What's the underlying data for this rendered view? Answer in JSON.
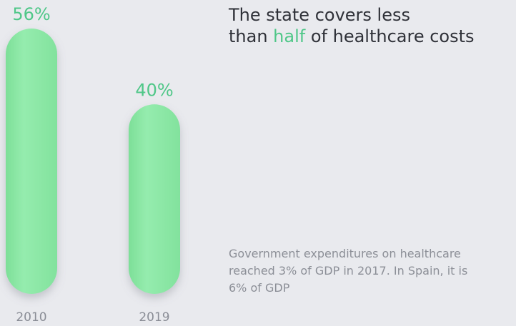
{
  "title": {
    "line1": "The state covers less",
    "line2_pre": "than ",
    "line2_highlight": "half",
    "line2_post": " of healthcare costs"
  },
  "note": "Government expenditures on healthcare reached 3% of GDP in 2017. In Spain, it is 6% of GDP",
  "colors": {
    "bar": "#8ee8a6",
    "accent": "#4fc788",
    "background": "#e9eaee",
    "text": "#2f3138",
    "muted": "#8c8f97"
  },
  "chart_data": {
    "type": "bar",
    "categories": [
      "2010",
      "2019"
    ],
    "values": [
      56,
      40
    ],
    "value_labels": [
      "56%",
      "40%"
    ],
    "unit": "%",
    "title": "",
    "xlabel": "",
    "ylabel": "",
    "grid": false
  }
}
